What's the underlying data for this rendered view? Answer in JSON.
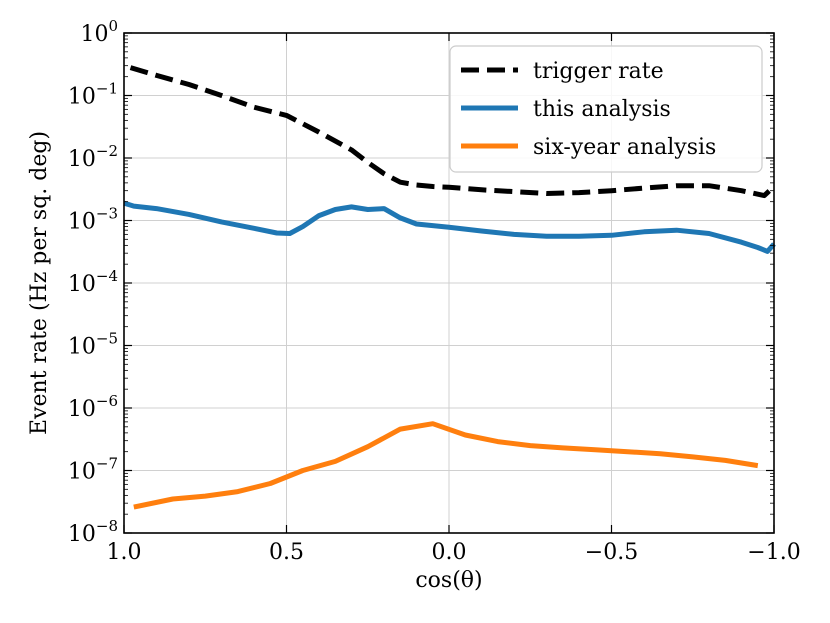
{
  "chart_data": {
    "type": "line",
    "title": "",
    "xlabel": "cos(θ)",
    "ylabel": "Event rate (Hz per sq. deg)",
    "xlim": [
      1.0,
      -1.0
    ],
    "ylog": true,
    "ylim_exp": [
      -8,
      0
    ],
    "grid": true,
    "legend_position": "top-right",
    "x_ticks": [
      {
        "value": 1.0,
        "label": "1.0"
      },
      {
        "value": 0.5,
        "label": "0.5"
      },
      {
        "value": 0.0,
        "label": "0.0"
      },
      {
        "value": -0.5,
        "label": "−0.5"
      },
      {
        "value": -1.0,
        "label": "−1.0"
      }
    ],
    "y_ticks": [
      {
        "exp": 0,
        "base": "10",
        "sup": "0"
      },
      {
        "exp": -1,
        "base": "10",
        "sup": "−1"
      },
      {
        "exp": -2,
        "base": "10",
        "sup": "−2"
      },
      {
        "exp": -3,
        "base": "10",
        "sup": "−3"
      },
      {
        "exp": -4,
        "base": "10",
        "sup": "−4"
      },
      {
        "exp": -5,
        "base": "10",
        "sup": "−5"
      },
      {
        "exp": -6,
        "base": "10",
        "sup": "−6"
      },
      {
        "exp": -7,
        "base": "10",
        "sup": "−7"
      },
      {
        "exp": -8,
        "base": "10",
        "sup": "−8"
      }
    ],
    "series": [
      {
        "name": "trigger rate",
        "color": "#000000",
        "style": "dashed",
        "points": [
          [
            0.98,
            0.28
          ],
          [
            0.9,
            0.21
          ],
          [
            0.8,
            0.15
          ],
          [
            0.7,
            0.1
          ],
          [
            0.6,
            0.065
          ],
          [
            0.5,
            0.048
          ],
          [
            0.4,
            0.026
          ],
          [
            0.3,
            0.0135
          ],
          [
            0.25,
            0.0085
          ],
          [
            0.2,
            0.0056
          ],
          [
            0.15,
            0.0041
          ],
          [
            0.1,
            0.0037
          ],
          [
            0.05,
            0.0035
          ],
          [
            0.0,
            0.0034
          ],
          [
            -0.1,
            0.0031
          ],
          [
            -0.2,
            0.0029
          ],
          [
            -0.3,
            0.0027
          ],
          [
            -0.4,
            0.0028
          ],
          [
            -0.5,
            0.003
          ],
          [
            -0.6,
            0.0033
          ],
          [
            -0.7,
            0.0036
          ],
          [
            -0.8,
            0.0036
          ],
          [
            -0.9,
            0.003
          ],
          [
            -0.97,
            0.0025
          ],
          [
            -1.0,
            0.0035
          ]
        ]
      },
      {
        "name": "this analysis",
        "color": "#1f77b4",
        "style": "solid",
        "points": [
          [
            1.0,
            0.0019
          ],
          [
            0.97,
            0.0017
          ],
          [
            0.9,
            0.00155
          ],
          [
            0.8,
            0.00125
          ],
          [
            0.7,
            0.00095
          ],
          [
            0.6,
            0.00075
          ],
          [
            0.53,
            0.00063
          ],
          [
            0.49,
            0.00062
          ],
          [
            0.45,
            0.0008
          ],
          [
            0.4,
            0.0012
          ],
          [
            0.35,
            0.0015
          ],
          [
            0.3,
            0.00165
          ],
          [
            0.25,
            0.0015
          ],
          [
            0.2,
            0.00155
          ],
          [
            0.15,
            0.0011
          ],
          [
            0.1,
            0.00088
          ],
          [
            0.0,
            0.00078
          ],
          [
            -0.1,
            0.00068
          ],
          [
            -0.2,
            0.0006
          ],
          [
            -0.3,
            0.00056
          ],
          [
            -0.4,
            0.00056
          ],
          [
            -0.5,
            0.00058
          ],
          [
            -0.6,
            0.00066
          ],
          [
            -0.7,
            0.0007
          ],
          [
            -0.8,
            0.00062
          ],
          [
            -0.9,
            0.00045
          ],
          [
            -0.95,
            0.00037
          ],
          [
            -0.98,
            0.00032
          ],
          [
            -1.0,
            0.00042
          ]
        ]
      },
      {
        "name": "six-year analysis",
        "color": "#ff7f0e",
        "style": "solid",
        "points": [
          [
            0.97,
            2.6e-08
          ],
          [
            0.85,
            3.5e-08
          ],
          [
            0.75,
            3.9e-08
          ],
          [
            0.65,
            4.6e-08
          ],
          [
            0.55,
            6.2e-08
          ],
          [
            0.45,
            1e-07
          ],
          [
            0.35,
            1.4e-07
          ],
          [
            0.25,
            2.4e-07
          ],
          [
            0.15,
            4.6e-07
          ],
          [
            0.05,
            5.6e-07
          ],
          [
            -0.05,
            3.7e-07
          ],
          [
            -0.15,
            2.9e-07
          ],
          [
            -0.25,
            2.5e-07
          ],
          [
            -0.35,
            2.3e-07
          ],
          [
            -0.45,
            2.15e-07
          ],
          [
            -0.55,
            2e-07
          ],
          [
            -0.65,
            1.85e-07
          ],
          [
            -0.75,
            1.65e-07
          ],
          [
            -0.85,
            1.45e-07
          ],
          [
            -0.95,
            1.2e-07
          ]
        ]
      }
    ]
  }
}
